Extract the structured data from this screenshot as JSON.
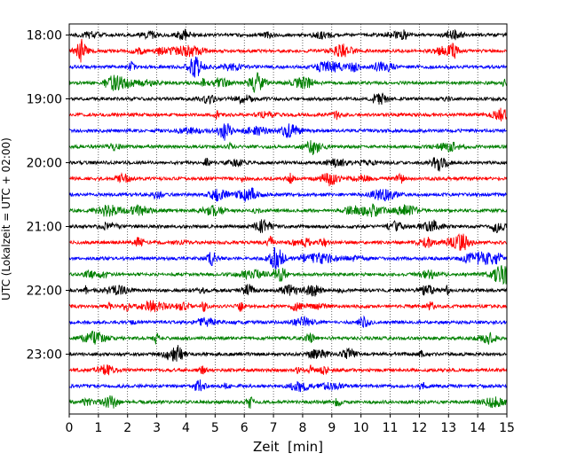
{
  "chart_data": {
    "type": "line",
    "title": "",
    "xlabel": "Zeit  [min]",
    "ylabel": "UTC (Lokalzeit = UTC + 02:00)",
    "xlim": [
      0,
      15
    ],
    "x_ticks": [
      0,
      1,
      2,
      3,
      4,
      5,
      6,
      7,
      8,
      9,
      10,
      11,
      12,
      13,
      14,
      15
    ],
    "y_tick_labels": [
      "18:00",
      "19:00",
      "20:00",
      "21:00",
      "22:00",
      "23:00"
    ],
    "grid": "vertical dotted lines at each minute",
    "trace_interval_minutes": 15,
    "traces": [
      {
        "start": "18:00",
        "color": "#000000"
      },
      {
        "start": "18:15",
        "color": "#ff0000"
      },
      {
        "start": "18:30",
        "color": "#0000ff"
      },
      {
        "start": "18:45",
        "color": "#008000"
      },
      {
        "start": "19:00",
        "color": "#000000"
      },
      {
        "start": "19:15",
        "color": "#ff0000"
      },
      {
        "start": "19:30",
        "color": "#0000ff"
      },
      {
        "start": "19:45",
        "color": "#008000"
      },
      {
        "start": "20:00",
        "color": "#000000"
      },
      {
        "start": "20:15",
        "color": "#ff0000"
      },
      {
        "start": "20:30",
        "color": "#0000ff"
      },
      {
        "start": "20:45",
        "color": "#008000"
      },
      {
        "start": "21:00",
        "color": "#000000"
      },
      {
        "start": "21:15",
        "color": "#ff0000"
      },
      {
        "start": "21:30",
        "color": "#0000ff"
      },
      {
        "start": "21:45",
        "color": "#008000"
      },
      {
        "start": "22:00",
        "color": "#000000"
      },
      {
        "start": "22:15",
        "color": "#ff0000"
      },
      {
        "start": "22:30",
        "color": "#0000ff"
      },
      {
        "start": "22:45",
        "color": "#008000"
      },
      {
        "start": "23:00",
        "color": "#000000"
      },
      {
        "start": "23:15",
        "color": "#ff0000"
      },
      {
        "start": "23:30",
        "color": "#0000ff"
      },
      {
        "start": "23:45",
        "color": "#008000"
      }
    ]
  }
}
